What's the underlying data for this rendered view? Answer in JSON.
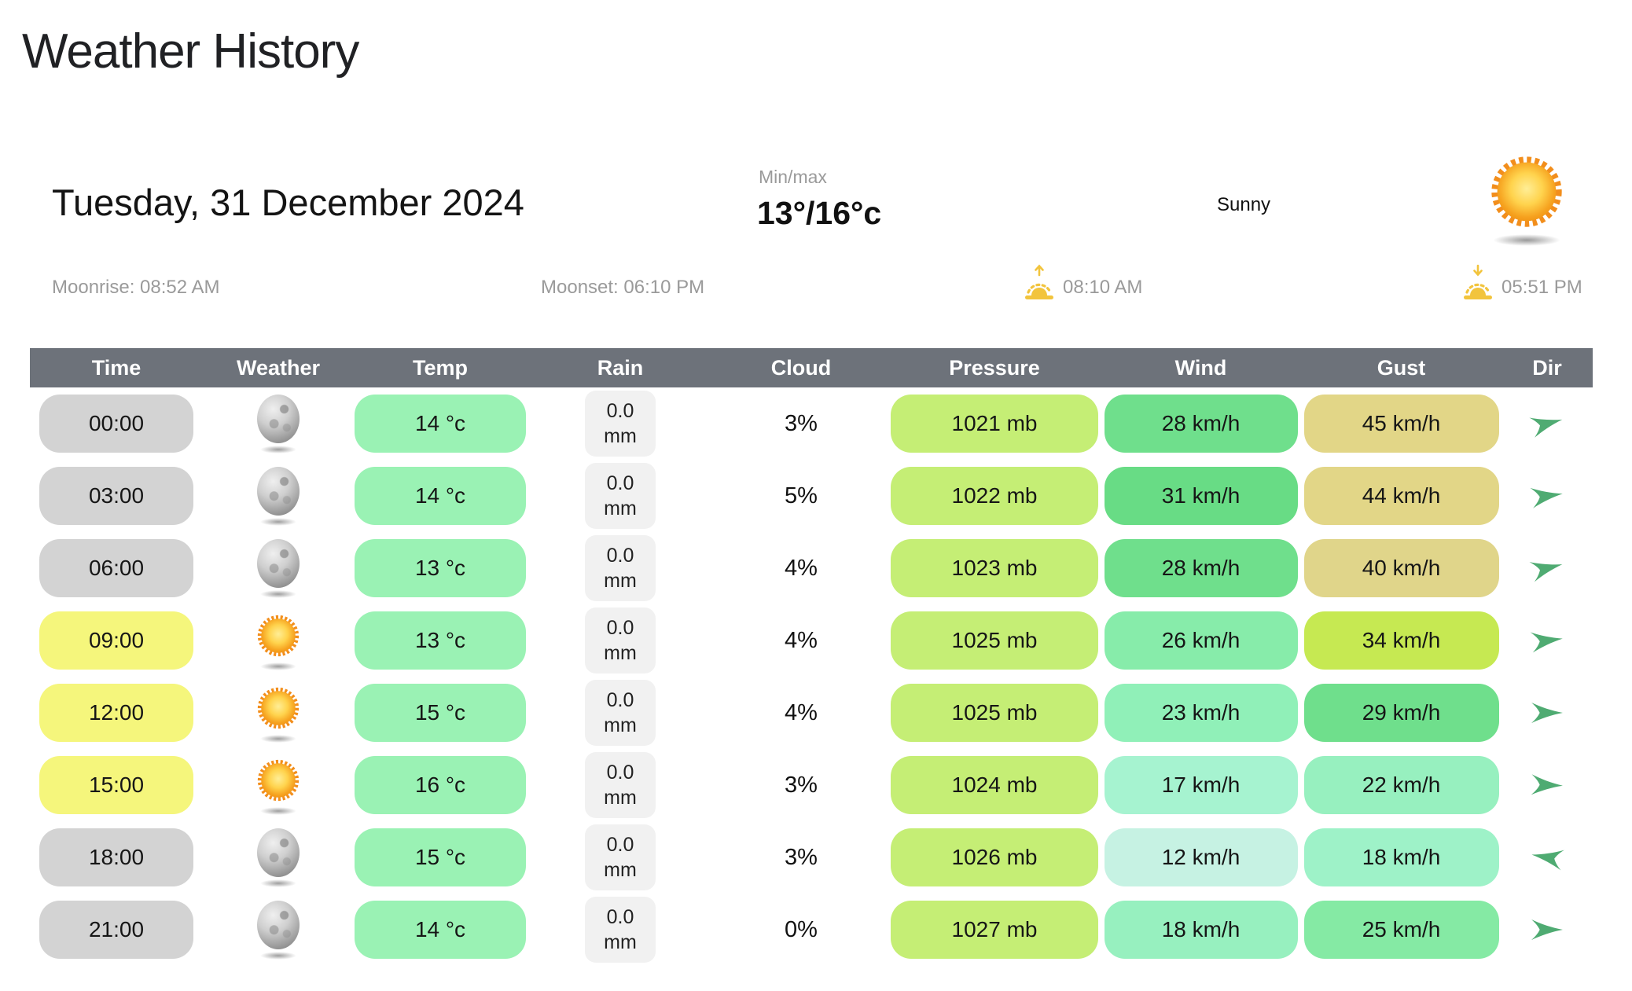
{
  "title": "Weather History",
  "summary": {
    "date": "Tuesday, 31 December 2024",
    "minmax_label": "Min/max",
    "minmax_value": "13°/16°c",
    "condition": "Sunny",
    "moonrise": "Moonrise: 08:52 AM",
    "moonset": "Moonset: 06:10 PM",
    "sunrise": "08:10 AM",
    "sunset": "05:51 PM"
  },
  "icons": {
    "condition": "sun-icon",
    "night_weather": "moon-icon",
    "day_weather": "sun-icon",
    "sunrise": "sunrise-up-arrow-icon",
    "sunset": "sunset-down-arrow-icon",
    "direction": "wind-direction-arrow-icon"
  },
  "colors": {
    "header_bg": "#6d727a",
    "header_text": "#ffffff",
    "time_night": "#d3d3d3",
    "time_day": "#f5f67c",
    "temp": "#9af2b4",
    "rain_bg": "#f1f1f1",
    "pressure": "#c5ee75",
    "arrow": "#4fab72",
    "muted_text": "#9a9a9a",
    "amber": "#f2c43d"
  },
  "table": {
    "headers": [
      "Time",
      "Weather",
      "Temp",
      "Rain",
      "Cloud",
      "Pressure",
      "Wind",
      "Gust",
      "Dir"
    ],
    "rows": [
      {
        "time": "00:00",
        "period": "night",
        "weather_icon": "moon-icon",
        "temp": "14 °c",
        "rain_line1": "0.0",
        "rain_line2": "mm",
        "cloud": "3%",
        "pressure": "1021 mb",
        "wind": "28 km/h",
        "wind_color": "#6fdf8c",
        "gust": "45 km/h",
        "gust_color": "#e2d687",
        "dir_rotation_deg": -15
      },
      {
        "time": "03:00",
        "period": "night",
        "weather_icon": "moon-icon",
        "temp": "14 °c",
        "rain_line1": "0.0",
        "rain_line2": "mm",
        "cloud": "5%",
        "pressure": "1022 mb",
        "wind": "31 km/h",
        "wind_color": "#68dc85",
        "gust": "44 km/h",
        "gust_color": "#e2d687",
        "dir_rotation_deg": -8
      },
      {
        "time": "06:00",
        "period": "night",
        "weather_icon": "moon-icon",
        "temp": "13 °c",
        "rain_line1": "0.0",
        "rain_line2": "mm",
        "cloud": "4%",
        "pressure": "1023 mb",
        "wind": "28 km/h",
        "wind_color": "#6fdf8c",
        "gust": "40 km/h",
        "gust_color": "#e0d58a",
        "dir_rotation_deg": -14
      },
      {
        "time": "09:00",
        "period": "day",
        "weather_icon": "sun-icon",
        "temp": "13 °c",
        "rain_line1": "0.0",
        "rain_line2": "mm",
        "cloud": "4%",
        "pressure": "1025 mb",
        "wind": "26 km/h",
        "wind_color": "#87ecaa",
        "gust": "34 km/h",
        "gust_color": "#c6e952",
        "dir_rotation_deg": -7
      },
      {
        "time": "12:00",
        "period": "day",
        "weather_icon": "sun-icon",
        "temp": "15 °c",
        "rain_line1": "0.0",
        "rain_line2": "mm",
        "cloud": "4%",
        "pressure": "1025 mb",
        "wind": "23 km/h",
        "wind_color": "#90f0b8",
        "gust": "29 km/h",
        "gust_color": "#6fdf8c",
        "dir_rotation_deg": 0
      },
      {
        "time": "15:00",
        "period": "day",
        "weather_icon": "sun-icon",
        "temp": "16 °c",
        "rain_line1": "0.0",
        "rain_line2": "mm",
        "cloud": "3%",
        "pressure": "1024 mb",
        "wind": "17 km/h",
        "wind_color": "#a6f3d0",
        "gust": "22 km/h",
        "gust_color": "#97f0bf",
        "dir_rotation_deg": 2
      },
      {
        "time": "18:00",
        "period": "night",
        "weather_icon": "moon-icon",
        "temp": "15 °c",
        "rain_line1": "0.0",
        "rain_line2": "mm",
        "cloud": "3%",
        "pressure": "1026 mb",
        "wind": "12 km/h",
        "wind_color": "#c6f2e3",
        "gust": "18 km/h",
        "gust_color": "#9ef2c8",
        "dir_rotation_deg": 190
      },
      {
        "time": "21:00",
        "period": "night",
        "weather_icon": "moon-icon",
        "temp": "14 °c",
        "rain_line1": "0.0",
        "rain_line2": "mm",
        "cloud": "0%",
        "pressure": "1027 mb",
        "wind": "18 km/h",
        "wind_color": "#97f0bf",
        "gust": "25 km/h",
        "gust_color": "#85eaa4",
        "dir_rotation_deg": 0
      }
    ]
  }
}
